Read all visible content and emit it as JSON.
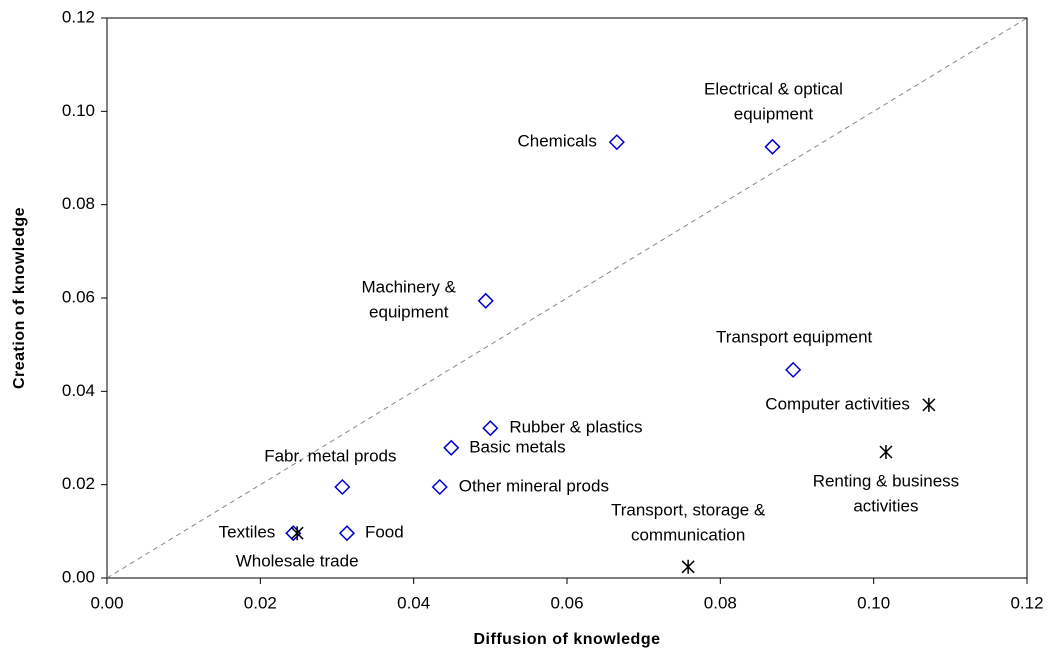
{
  "chart_data": {
    "type": "scatter",
    "x_label": "Diffusion of knowledge",
    "y_label": "Creation of knowledge",
    "xlim": [
      0,
      0.12
    ],
    "ylim": [
      0,
      0.12
    ],
    "xticks": [
      {
        "value": 0,
        "label": "0.00"
      },
      {
        "value": 0.02,
        "label": "0.02"
      },
      {
        "value": 0.04,
        "label": "0.04"
      },
      {
        "value": 0.06,
        "label": "0.06"
      },
      {
        "value": 0.08,
        "label": "0.08"
      },
      {
        "value": 0.1,
        "label": "0.10"
      },
      {
        "value": 0.12,
        "label": "0.12"
      }
    ],
    "yticks": [
      {
        "value": 0,
        "label": "0.00"
      },
      {
        "value": 0.02,
        "label": "0.02"
      },
      {
        "value": 0.04,
        "label": "0.04"
      },
      {
        "value": 0.06,
        "label": "0.06"
      },
      {
        "value": 0.08,
        "label": "0.08"
      },
      {
        "value": 0.1,
        "label": "0.10"
      },
      {
        "value": 0.12,
        "label": "0.12"
      }
    ],
    "diagonal": true,
    "series": [
      {
        "color": "#0000cc",
        "marker": "diamond",
        "x": [
          0.0665,
          0.0868,
          0.0494,
          0.0895,
          0.05,
          0.0449,
          0.0307,
          0.0434,
          0.0243,
          0.0313
        ],
        "values": [
          0.0934,
          0.0924,
          0.0594,
          0.0446,
          0.0321,
          0.0279,
          0.0195,
          0.0195,
          0.0096,
          0.0096
        ],
        "labels": [
          [
            "Chemicals"
          ],
          [
            "Electrical & optical",
            "equipment"
          ],
          [
            "Machinery &",
            "equipment"
          ],
          [
            "Transport equipment"
          ],
          [
            "Rubber & plastics"
          ],
          [
            "Basic metals"
          ],
          [
            "Fabr. metal prods"
          ],
          [
            "Other mineral prods"
          ],
          [
            "Textiles"
          ],
          [
            "Food"
          ]
        ]
      },
      {
        "color": "#000000",
        "marker": "asterisk",
        "x": [
          0.0248,
          0.0758,
          0.1072,
          0.1016
        ],
        "values": [
          0.0096,
          0.0024,
          0.0371,
          0.027
        ],
        "labels": [
          [
            "Wholesale trade"
          ],
          [
            "Transport, storage &",
            "communication"
          ],
          [
            "Computer activities"
          ],
          [
            "Renting & business",
            "activities"
          ]
        ]
      }
    ]
  }
}
